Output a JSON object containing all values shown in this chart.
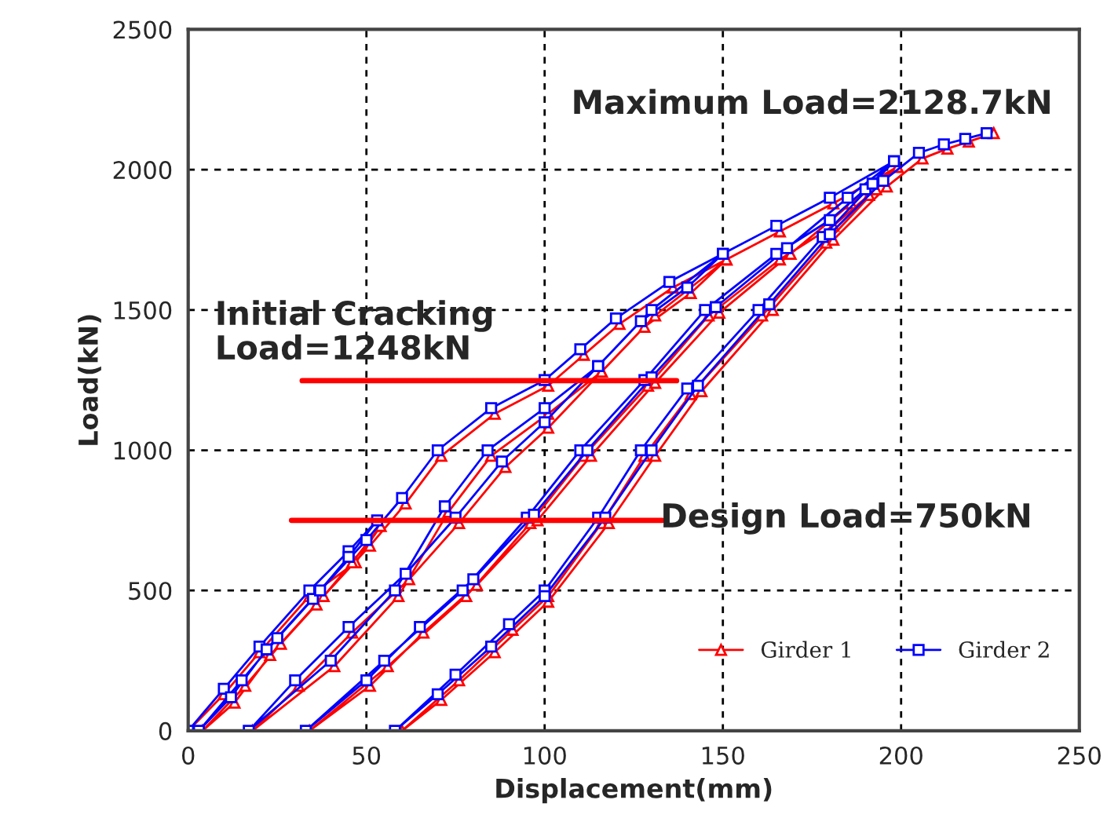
{
  "chart_data": {
    "type": "line",
    "xlabel": "Displacement(mm)",
    "ylabel": "Load(kN)",
    "xlim": [
      0,
      250
    ],
    "ylim": [
      0,
      2500
    ],
    "xticks": [
      0,
      50,
      100,
      150,
      200,
      250
    ],
    "yticks": [
      0,
      500,
      1000,
      1500,
      2000,
      2500
    ],
    "grid": true,
    "legend": "bottom right",
    "line_style": "solid",
    "annotations": [
      "Maximum Load=2128.7kN",
      "Initial Cracking\nLoad=1248kN",
      "Design Load=750kN"
    ],
    "series": [
      {
        "name": "Girder 1",
        "color": "#ff0000",
        "marker": "triangle",
        "x": [
          0,
          10,
          20,
          34,
          47,
          54,
          46,
          36,
          26,
          16,
          4,
          13,
          23,
          38,
          51,
          61,
          71,
          86,
          101,
          111,
          121,
          136,
          151,
          141,
          128,
          116,
          101,
          85,
          73,
          59,
          41,
          18,
          31,
          46,
          62,
          76,
          89,
          101,
          116,
          131,
          151,
          166,
          181,
          199,
          191,
          181,
          166,
          146,
          129,
          111,
          96,
          78,
          56,
          34,
          51,
          66,
          81,
          98,
          113,
          131,
          149,
          169,
          186,
          199,
          193,
          179,
          161,
          141,
          128,
          116,
          101,
          91,
          76,
          60,
          71,
          86,
          101,
          118,
          131,
          144,
          164,
          181,
          196,
          206,
          213,
          219,
          226
        ],
        "values": [
          0,
          130,
          280,
          480,
          600,
          730,
          600,
          450,
          310,
          160,
          0,
          100,
          270,
          480,
          660,
          810,
          980,
          1130,
          1230,
          1340,
          1450,
          1580,
          1680,
          1560,
          1440,
          1280,
          1130,
          980,
          780,
          480,
          230,
          0,
          160,
          350,
          540,
          740,
          940,
          1080,
          1280,
          1480,
          1680,
          1780,
          1880,
          2010,
          1910,
          1800,
          1680,
          1480,
          1230,
          980,
          740,
          480,
          230,
          0,
          160,
          350,
          520,
          750,
          980,
          1240,
          1490,
          1700,
          1880,
          2010,
          1930,
          1740,
          1480,
          1200,
          980,
          740,
          480,
          360,
          180,
          0,
          110,
          280,
          460,
          740,
          980,
          1210,
          1500,
          1750,
          1940,
          2040,
          2075,
          2100,
          2130
        ]
      },
      {
        "name": "Girder 2",
        "color": "#0000ff",
        "marker": "square",
        "x": [
          0,
          10,
          20,
          34,
          45,
          53,
          45,
          35,
          25,
          15,
          3,
          12,
          22,
          37,
          50,
          60,
          70,
          85,
          100,
          110,
          120,
          135,
          150,
          140,
          127,
          115,
          100,
          84,
          72,
          58,
          40,
          17,
          30,
          45,
          61,
          75,
          88,
          100,
          115,
          130,
          150,
          165,
          180,
          198,
          190,
          180,
          165,
          145,
          128,
          110,
          95,
          77,
          55,
          33,
          50,
          65,
          80,
          97,
          112,
          130,
          148,
          168,
          185,
          198,
          192,
          178,
          160,
          140,
          127,
          115,
          100,
          90,
          75,
          58,
          70,
          85,
          100,
          117,
          130,
          143,
          163,
          180,
          195,
          205,
          212,
          218,
          224
        ],
        "values": [
          0,
          150,
          300,
          500,
          640,
          750,
          620,
          470,
          330,
          180,
          0,
          120,
          290,
          500,
          680,
          830,
          1000,
          1150,
          1250,
          1360,
          1470,
          1600,
          1700,
          1580,
          1460,
          1300,
          1150,
          1000,
          800,
          500,
          250,
          0,
          180,
          370,
          560,
          760,
          960,
          1100,
          1300,
          1500,
          1700,
          1800,
          1900,
          2030,
          1930,
          1820,
          1700,
          1500,
          1250,
          1000,
          760,
          500,
          250,
          0,
          180,
          370,
          540,
          770,
          1000,
          1260,
          1510,
          1720,
          1900,
          2030,
          1950,
          1760,
          1500,
          1220,
          1000,
          760,
          500,
          380,
          200,
          0,
          130,
          300,
          480,
          760,
          1000,
          1230,
          1520,
          1770,
          1960,
          2060,
          2090,
          2110,
          2130
        ]
      },
      {
        "type": "line",
        "color": "#ff0000",
        "marker": "none",
        "x": [
          32,
          137
        ],
        "values": [
          1248,
          1248
        ]
      },
      {
        "type": "line",
        "color": "#ff0000",
        "marker": "none",
        "x": [
          29,
          133
        ],
        "values": [
          750,
          750
        ]
      }
    ]
  }
}
